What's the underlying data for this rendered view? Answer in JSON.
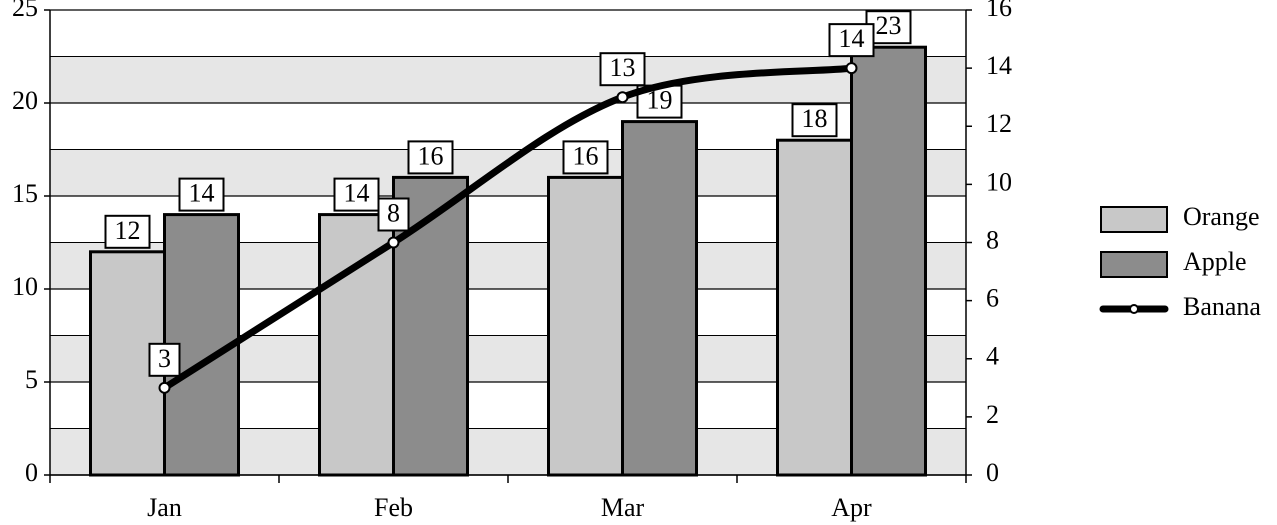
{
  "chart_data": {
    "type": "bar",
    "categories": [
      "Jan",
      "Feb",
      "Mar",
      "Apr"
    ],
    "series": [
      {
        "name": "Orange",
        "color": "#c8c8c8",
        "values": [
          12,
          14,
          16,
          18
        ]
      },
      {
        "name": "Apple",
        "color": "#8c8c8c",
        "values": [
          14,
          16,
          19,
          23
        ]
      },
      {
        "name": "Banana",
        "color": "#000000",
        "type": "line",
        "axis": "y2",
        "values": [
          3,
          8,
          13,
          14
        ]
      }
    ],
    "ylim": [
      0,
      25
    ],
    "yticks": [
      0,
      5,
      10,
      15,
      20,
      25
    ],
    "y2lim": [
      0,
      16
    ],
    "y2ticks": [
      0,
      2,
      4,
      6,
      8,
      10,
      12,
      14,
      16
    ],
    "grid": true,
    "legend": "right"
  }
}
